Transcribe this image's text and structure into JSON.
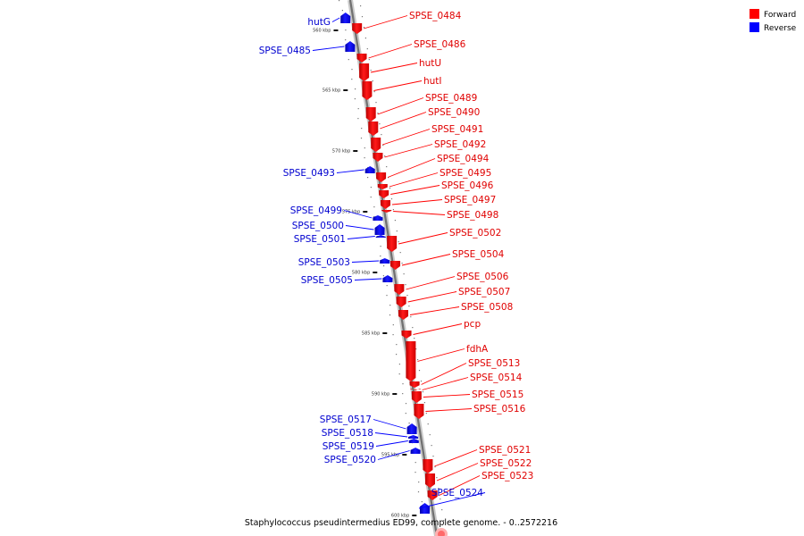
{
  "legend": {
    "forward": {
      "label": "Forward",
      "color": "#ff0000"
    },
    "reverse": {
      "label": "Reverse",
      "color": "#0000ff"
    }
  },
  "caption": "Staphylococcus pseudintermedius ED99, complete genome. - 0..2572216",
  "ticks": [
    "560 kbp",
    "565 kbp",
    "570 kbp",
    "575 kbp",
    "580 kbp",
    "585 kbp",
    "590 kbp",
    "595 kbp",
    "600 kbp"
  ],
  "genes": [
    {
      "name": "hutG",
      "strand": "reverse"
    },
    {
      "name": "SPSE_0484",
      "strand": "forward"
    },
    {
      "name": "SPSE_0485",
      "strand": "reverse"
    },
    {
      "name": "SPSE_0486",
      "strand": "forward"
    },
    {
      "name": "hutU",
      "strand": "forward"
    },
    {
      "name": "hutI",
      "strand": "forward"
    },
    {
      "name": "SPSE_0489",
      "strand": "forward"
    },
    {
      "name": "SPSE_0490",
      "strand": "forward"
    },
    {
      "name": "SPSE_0491",
      "strand": "forward"
    },
    {
      "name": "SPSE_0492",
      "strand": "forward"
    },
    {
      "name": "SPSE_0493",
      "strand": "reverse"
    },
    {
      "name": "SPSE_0494",
      "strand": "forward"
    },
    {
      "name": "SPSE_0495",
      "strand": "forward"
    },
    {
      "name": "SPSE_0496",
      "strand": "forward"
    },
    {
      "name": "SPSE_0497",
      "strand": "forward"
    },
    {
      "name": "SPSE_0498",
      "strand": "forward"
    },
    {
      "name": "SPSE_0499",
      "strand": "reverse"
    },
    {
      "name": "SPSE_0500",
      "strand": "reverse"
    },
    {
      "name": "SPSE_0501",
      "strand": "reverse"
    },
    {
      "name": "SPSE_0502",
      "strand": "forward"
    },
    {
      "name": "SPSE_0503",
      "strand": "reverse"
    },
    {
      "name": "SPSE_0504",
      "strand": "forward"
    },
    {
      "name": "SPSE_0505",
      "strand": "reverse"
    },
    {
      "name": "SPSE_0506",
      "strand": "forward"
    },
    {
      "name": "SPSE_0507",
      "strand": "forward"
    },
    {
      "name": "SPSE_0508",
      "strand": "forward"
    },
    {
      "name": "pcp",
      "strand": "forward"
    },
    {
      "name": "fdhA",
      "strand": "forward"
    },
    {
      "name": "SPSE_0513",
      "strand": "forward"
    },
    {
      "name": "SPSE_0514",
      "strand": "forward"
    },
    {
      "name": "SPSE_0515",
      "strand": "forward"
    },
    {
      "name": "SPSE_0516",
      "strand": "forward"
    },
    {
      "name": "SPSE_0517",
      "strand": "reverse"
    },
    {
      "name": "SPSE_0518",
      "strand": "reverse"
    },
    {
      "name": "SPSE_0519",
      "strand": "reverse"
    },
    {
      "name": "SPSE_0520",
      "strand": "reverse"
    },
    {
      "name": "SPSE_0521",
      "strand": "forward"
    },
    {
      "name": "SPSE_0522",
      "strand": "forward"
    },
    {
      "name": "SPSE_0523",
      "strand": "forward"
    },
    {
      "name": "SPSE_0524",
      "strand": "reverse"
    }
  ]
}
